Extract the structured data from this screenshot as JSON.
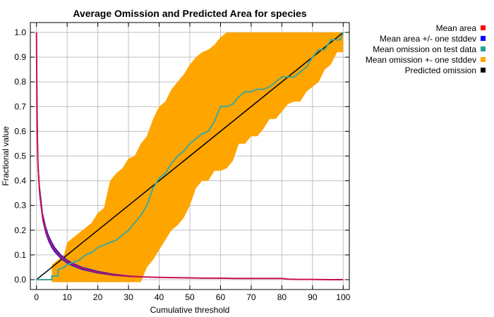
{
  "chart_data": {
    "type": "line",
    "title": "Average Omission and Predicted Area for species",
    "xlabel": "Cumulative threshold",
    "ylabel": "Fractional value",
    "xlim": [
      -2,
      102
    ],
    "ylim": [
      -0.04,
      1.04
    ],
    "xticks": [
      0,
      10,
      20,
      30,
      40,
      50,
      60,
      70,
      80,
      90,
      100
    ],
    "yticks": [
      0.0,
      0.1,
      0.2,
      0.3,
      0.4,
      0.5,
      0.6,
      0.7,
      0.8,
      0.9,
      1.0
    ],
    "ytick_labels": [
      "0.0",
      "0.1",
      "0.2",
      "0.3",
      "0.4",
      "0.5",
      "0.6",
      "0.7",
      "0.8",
      "0.9",
      "1.0"
    ],
    "grid": true,
    "legend_position": "top-right, outside plot",
    "legend": [
      {
        "label": "Mean area",
        "color": "#ff0000"
      },
      {
        "label": "Mean area +/- one stddev",
        "color": "#0000ff"
      },
      {
        "label": "Mean omission on test data",
        "color": "#20a0a0"
      },
      {
        "label": "Mean omission +- one stddev",
        "color": "#ffa500"
      },
      {
        "label": "Predicted omission",
        "color": "#000000"
      }
    ],
    "series": [
      {
        "name": "Mean area",
        "color": "#cc1050",
        "x": [
          0,
          0.2,
          0.5,
          1,
          1.5,
          2,
          3,
          4,
          5,
          6,
          7,
          8,
          9,
          10,
          12,
          14,
          16,
          18,
          20,
          22,
          25,
          28,
          30,
          33,
          35,
          40,
          45,
          50,
          55,
          60,
          65,
          70,
          75,
          80,
          82,
          85,
          90,
          95,
          100
        ],
        "y": [
          1.0,
          0.62,
          0.46,
          0.36,
          0.3,
          0.255,
          0.2,
          0.165,
          0.14,
          0.12,
          0.105,
          0.092,
          0.082,
          0.073,
          0.06,
          0.05,
          0.042,
          0.035,
          0.03,
          0.025,
          0.02,
          0.016,
          0.014,
          0.012,
          0.011,
          0.009,
          0.008,
          0.007,
          0.006,
          0.006,
          0.005,
          0.005,
          0.005,
          0.005,
          0.002,
          0.001,
          0.001,
          0.0,
          0.0
        ]
      },
      {
        "name": "Mean area +/- one stddev",
        "color": "#2020d0",
        "x": [
          0,
          0.5,
          1,
          2,
          3,
          4,
          5,
          6,
          8,
          10,
          12,
          15,
          20,
          25,
          30,
          35
        ],
        "upper": [
          1.0,
          0.48,
          0.38,
          0.27,
          0.215,
          0.178,
          0.152,
          0.13,
          0.1,
          0.08,
          0.066,
          0.05,
          0.034,
          0.023,
          0.016,
          0.012
        ],
        "lower": [
          1.0,
          0.44,
          0.34,
          0.24,
          0.188,
          0.153,
          0.128,
          0.11,
          0.084,
          0.066,
          0.054,
          0.04,
          0.026,
          0.017,
          0.012,
          0.01
        ]
      },
      {
        "name": "Mean omission on test data",
        "color": "#3ca89c",
        "x": [
          0,
          5,
          5,
          7,
          7,
          9,
          10,
          12,
          14,
          16,
          18,
          20,
          22,
          24,
          26,
          28,
          30,
          32,
          34,
          36,
          38,
          40,
          42,
          44,
          46,
          48,
          50,
          52,
          54,
          56,
          58,
          60,
          62,
          64,
          66,
          68,
          70,
          72,
          74,
          76,
          78,
          80,
          82,
          84,
          86,
          88,
          90,
          92,
          94,
          95,
          96,
          98,
          99,
          100
        ],
        "y": [
          0.0,
          0.0,
          0.015,
          0.015,
          0.04,
          0.05,
          0.06,
          0.07,
          0.08,
          0.1,
          0.11,
          0.13,
          0.14,
          0.15,
          0.16,
          0.18,
          0.2,
          0.23,
          0.26,
          0.3,
          0.37,
          0.41,
          0.43,
          0.47,
          0.5,
          0.52,
          0.55,
          0.57,
          0.59,
          0.6,
          0.64,
          0.7,
          0.7,
          0.71,
          0.74,
          0.76,
          0.76,
          0.77,
          0.77,
          0.78,
          0.8,
          0.82,
          0.82,
          0.82,
          0.84,
          0.86,
          0.9,
          0.93,
          0.93,
          0.95,
          0.97,
          0.97,
          0.97,
          1.0
        ]
      },
      {
        "name": "Mean omission +- one stddev",
        "color": "#ffa500",
        "x": [
          0,
          5,
          5,
          9,
          10,
          12,
          14,
          16,
          18,
          20,
          22,
          24,
          26,
          28,
          30,
          32,
          34,
          36,
          38,
          40,
          42,
          44,
          46,
          48,
          50,
          52,
          54,
          56,
          58,
          60,
          62,
          64,
          66,
          68,
          70,
          72,
          74,
          76,
          78,
          80,
          82,
          84,
          86,
          88,
          90,
          92,
          94,
          96,
          98,
          100
        ],
        "upper": [
          0.0,
          0.0,
          0.06,
          0.1,
          0.15,
          0.17,
          0.19,
          0.21,
          0.23,
          0.27,
          0.29,
          0.4,
          0.43,
          0.45,
          0.49,
          0.5,
          0.55,
          0.58,
          0.65,
          0.7,
          0.72,
          0.77,
          0.8,
          0.83,
          0.87,
          0.9,
          0.92,
          0.93,
          0.95,
          0.98,
          1.0,
          1.0,
          1.0,
          1.0,
          1.0,
          1.0,
          1.0,
          1.0,
          1.0,
          1.0,
          1.0,
          1.0,
          1.0,
          1.0,
          1.0,
          1.0,
          1.0,
          1.0,
          1.0,
          1.0
        ],
        "lower": [
          0.0,
          0.0,
          -0.01,
          -0.01,
          -0.01,
          -0.01,
          -0.01,
          -0.01,
          -0.01,
          -0.01,
          -0.01,
          -0.01,
          -0.01,
          -0.01,
          -0.01,
          -0.01,
          -0.01,
          0.05,
          0.08,
          0.12,
          0.16,
          0.2,
          0.22,
          0.25,
          0.3,
          0.37,
          0.4,
          0.4,
          0.44,
          0.44,
          0.45,
          0.48,
          0.55,
          0.55,
          0.58,
          0.58,
          0.61,
          0.65,
          0.65,
          0.68,
          0.71,
          0.72,
          0.72,
          0.76,
          0.78,
          0.8,
          0.85,
          0.87,
          0.92,
          0.92
        ]
      },
      {
        "name": "Predicted omission",
        "color": "#000000",
        "x": [
          0,
          100
        ],
        "y": [
          0.0,
          1.0
        ]
      }
    ]
  }
}
